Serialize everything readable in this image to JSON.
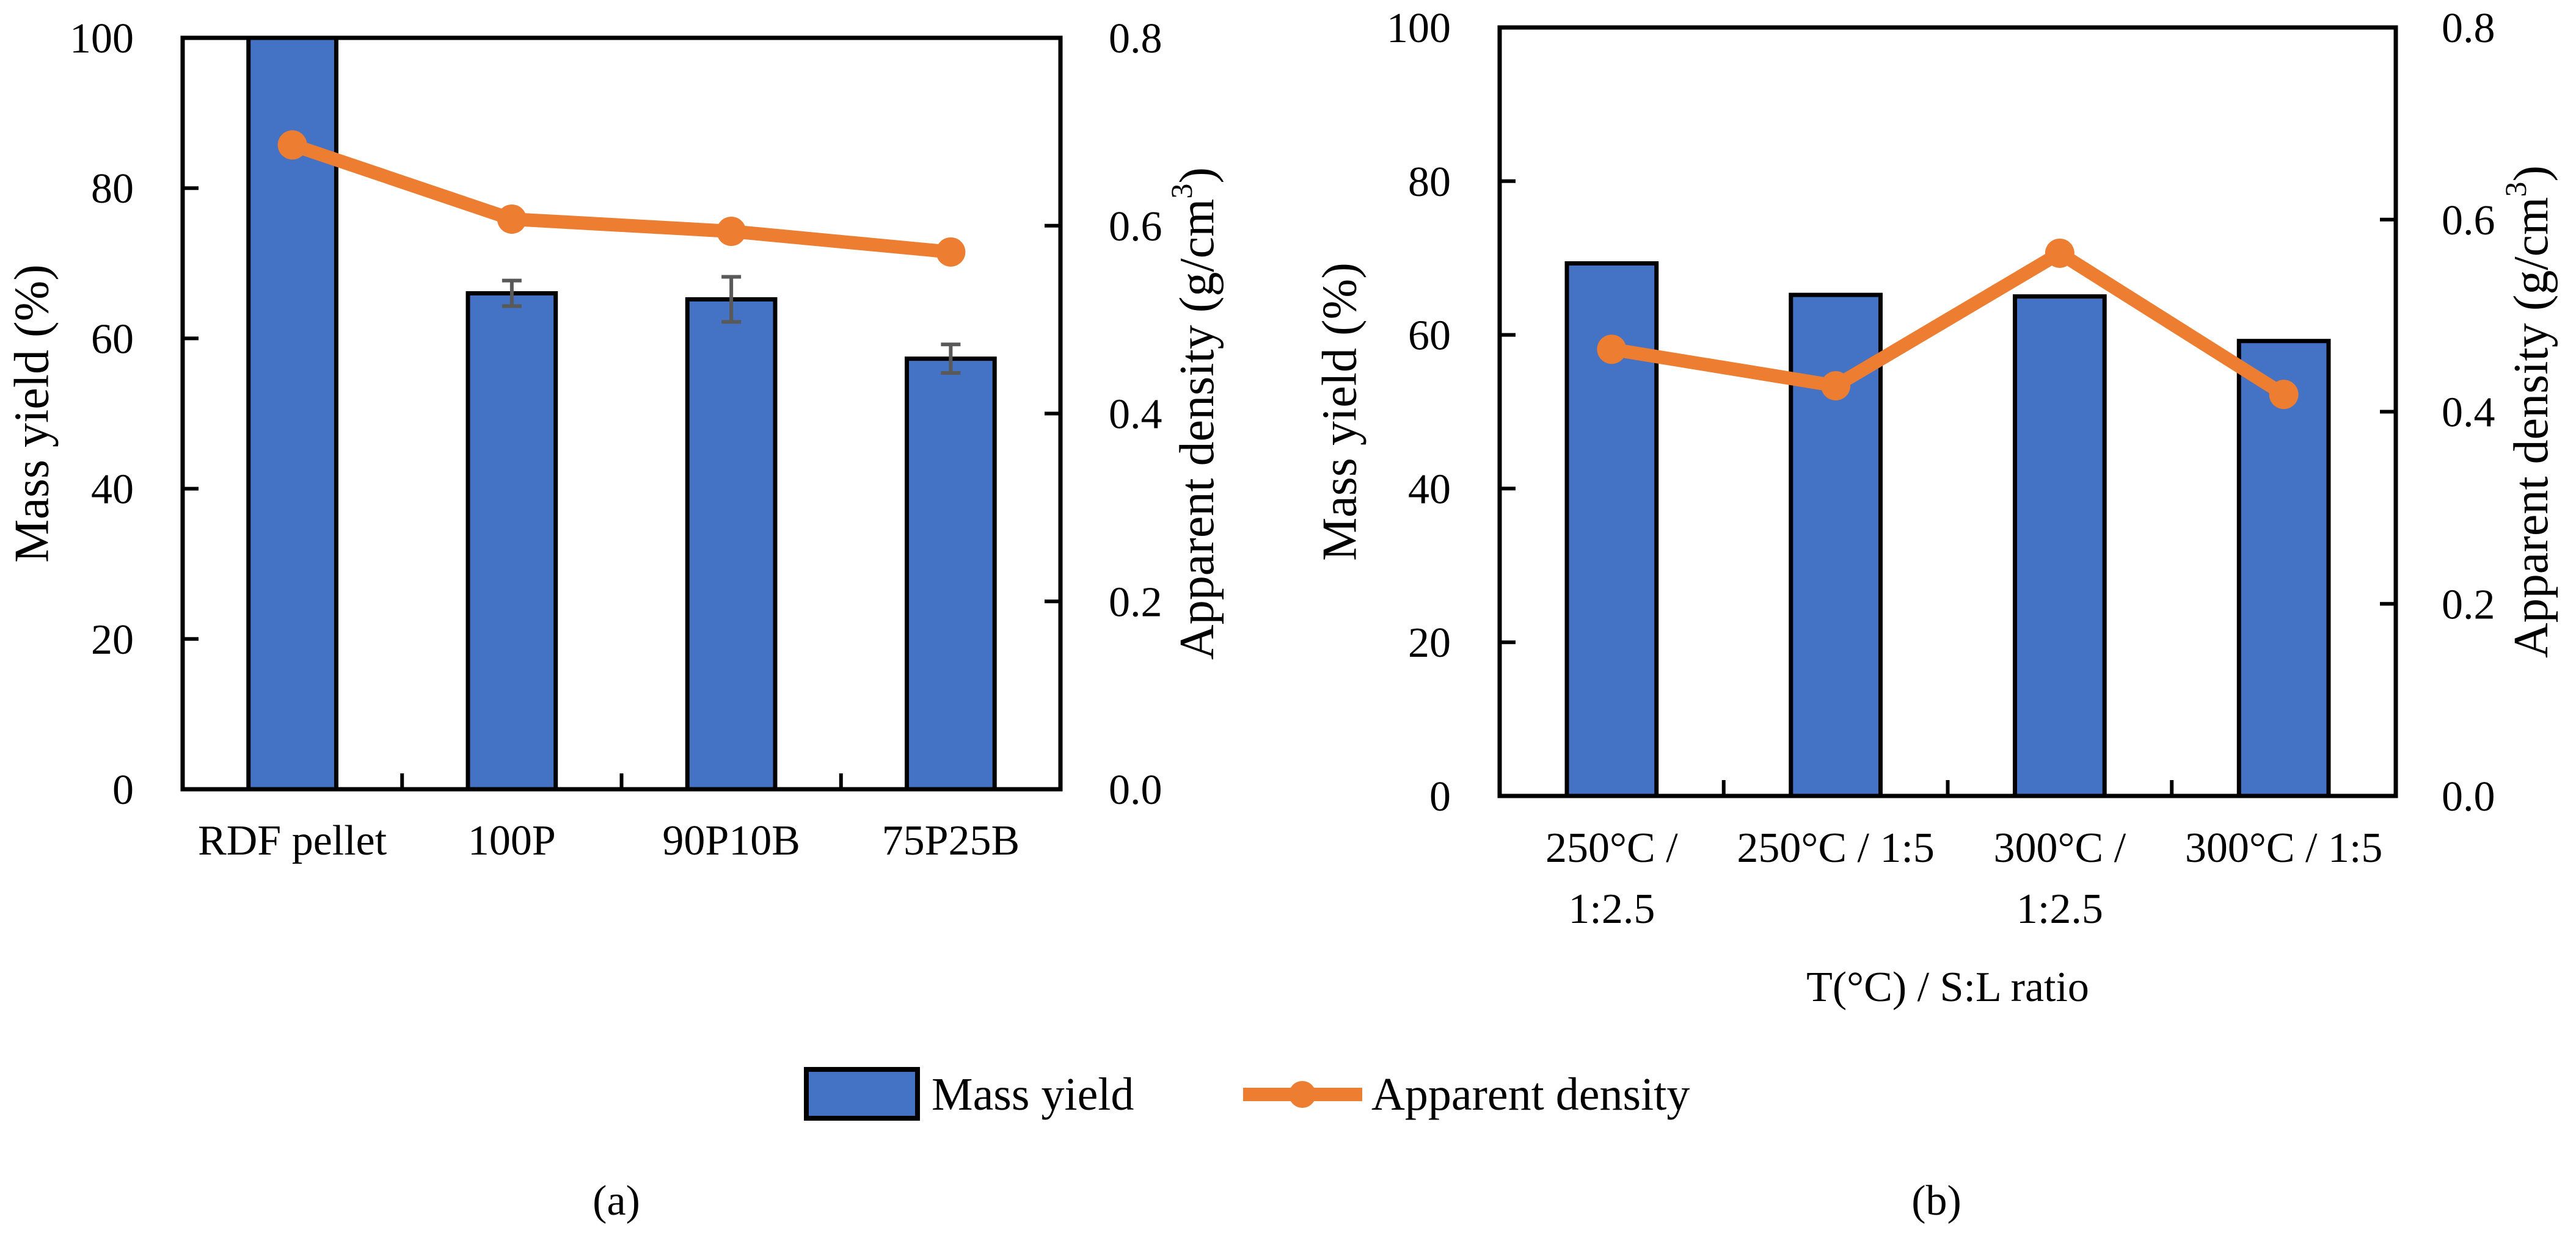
{
  "colors": {
    "bar": "#4472C4",
    "line": "#ED7D31",
    "axis": "#000000",
    "error": "#595959"
  },
  "legend": {
    "bar_label": "Mass yield",
    "line_label": "Apparent density",
    "placement": "bottom-center"
  },
  "panel_labels": [
    "(a)",
    "(b)"
  ],
  "chart_data": [
    {
      "type": "bar+line",
      "panel": "(a)",
      "title": "",
      "xlabel": "",
      "ylabel": "Mass yield (%)",
      "y2label": "Apparent density (g/cm3)",
      "ylim": [
        0,
        100
      ],
      "y2lim": [
        0,
        0.8
      ],
      "yticks": [
        "0",
        "20",
        "40",
        "60",
        "80",
        "100"
      ],
      "y2ticks": [
        "0.0",
        "0.2",
        "0.4",
        "0.6",
        "0.8"
      ],
      "categories": [
        [
          "RDF pellet"
        ],
        [
          "100P"
        ],
        [
          "90P10B"
        ],
        [
          "75P25B"
        ]
      ],
      "series": [
        {
          "name": "Mass yield",
          "kind": "bar",
          "axis": "left",
          "values": [
            100,
            66.0,
            65.2,
            57.3
          ],
          "errors": [
            0,
            1.7,
            3.0,
            1.9
          ]
        },
        {
          "name": "Apparent density",
          "kind": "line",
          "axis": "right",
          "values": [
            0.686,
            0.607,
            0.594,
            0.572
          ]
        }
      ],
      "grid": false
    },
    {
      "type": "bar+line",
      "panel": "(b)",
      "title": "",
      "xlabel": "T(°C) / S:L ratio",
      "ylabel": "Mass yield (%)",
      "y2label": "Apparent density (g/cm3)",
      "ylim": [
        0,
        100
      ],
      "y2lim": [
        0,
        0.8
      ],
      "yticks": [
        "0",
        "20",
        "40",
        "60",
        "80",
        "100"
      ],
      "y2ticks": [
        "0.0",
        "0.2",
        "0.4",
        "0.6",
        "0.8"
      ],
      "categories": [
        [
          "250°C /",
          "1:2.5"
        ],
        [
          "250°C / 1:5"
        ],
        [
          "300°C /",
          "1:2.5"
        ],
        [
          "300°C / 1:5"
        ]
      ],
      "series": [
        {
          "name": "Mass yield",
          "kind": "bar",
          "axis": "left",
          "values": [
            69.3,
            65.2,
            65.0,
            59.2
          ],
          "errors": [
            0,
            0,
            0,
            0
          ]
        },
        {
          "name": "Apparent density",
          "kind": "line",
          "axis": "right",
          "values": [
            0.465,
            0.427,
            0.565,
            0.418
          ]
        }
      ],
      "grid": false
    }
  ]
}
